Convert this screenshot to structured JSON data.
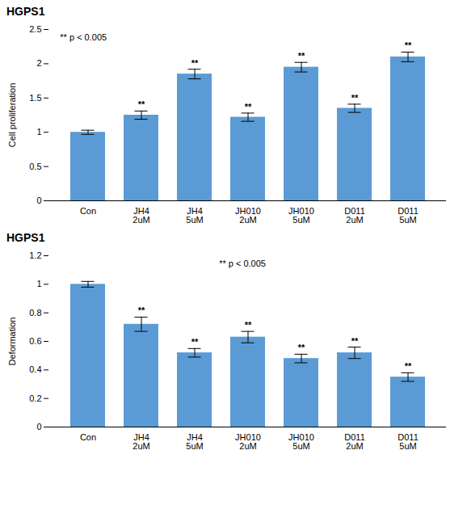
{
  "chart_data": [
    {
      "type": "bar",
      "title": "HGPS1",
      "categories": [
        "Con",
        "JH4\n2uM",
        "JH4\n5uM",
        "JH010\n2uM",
        "JH010\n5uM",
        "D011\n2uM",
        "D011\n5uM"
      ],
      "values": [
        1.0,
        1.25,
        1.85,
        1.22,
        1.95,
        1.35,
        2.1
      ],
      "errors": [
        0.03,
        0.06,
        0.07,
        0.06,
        0.07,
        0.06,
        0.07
      ],
      "significance": [
        null,
        "**",
        "**",
        "**",
        "**",
        "**",
        "**"
      ],
      "ylabel": "Cell proliferation",
      "ylim": [
        0,
        2.5
      ],
      "yticks": [
        0,
        0.5,
        1.0,
        1.5,
        2.0,
        2.5
      ],
      "color": "#5b9bd5",
      "annotation": "** p < 0.005",
      "grid": false
    },
    {
      "type": "bar",
      "title": "HGPS1",
      "categories": [
        "Con",
        "JH4\n2uM",
        "JH4\n5uM",
        "JH010\n2uM",
        "JH010\n5uM",
        "D011\n2uM",
        "D011\n5uM"
      ],
      "values": [
        1.0,
        0.72,
        0.52,
        0.63,
        0.48,
        0.52,
        0.35
      ],
      "errors": [
        0.02,
        0.05,
        0.03,
        0.04,
        0.03,
        0.04,
        0.03
      ],
      "significance": [
        null,
        "**",
        "**",
        "**",
        "**",
        "**",
        "**"
      ],
      "ylabel": "Deformation",
      "ylim": [
        0,
        1.2
      ],
      "yticks": [
        0,
        0.2,
        0.4,
        0.6,
        0.8,
        1.0,
        1.2
      ],
      "color": "#5b9bd5",
      "annotation": "** p < 0.005",
      "grid": false
    }
  ]
}
